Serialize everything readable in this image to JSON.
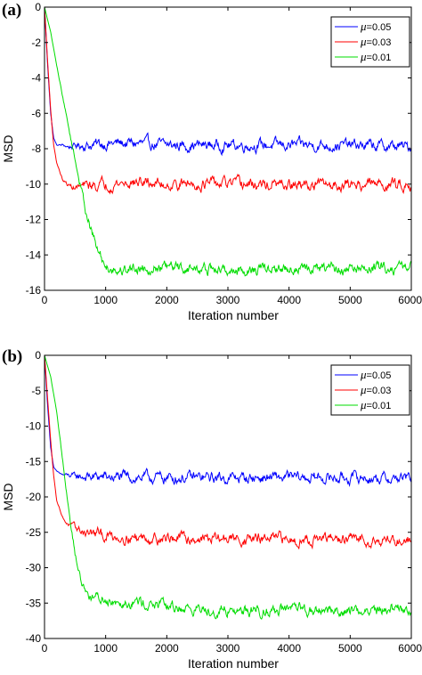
{
  "chart_data": [
    {
      "panel_label": "(a)",
      "type": "line",
      "xlabel": "Iteration number",
      "ylabel": "MSD",
      "xlim": [
        0,
        6000
      ],
      "ylim": [
        -16,
        0
      ],
      "xticks": [
        0,
        1000,
        2000,
        3000,
        4000,
        5000,
        6000
      ],
      "yticks": [
        0,
        -2,
        -4,
        -6,
        -8,
        -10,
        -12,
        -14,
        -16
      ],
      "legend_position": "top-right",
      "series": [
        {
          "name": "μ=0.05",
          "mu_symbol": "μ",
          "mu_value": "=0.05",
          "color": "#0000ff",
          "x": [
            0,
            50,
            100,
            150,
            200,
            300,
            400,
            600,
            800,
            1000,
            1500,
            2000,
            3000,
            4000,
            5000,
            6000
          ],
          "y": [
            0,
            -3.2,
            -6.0,
            -7.4,
            -7.8,
            -7.8,
            -7.9,
            -7.8,
            -7.8,
            -7.7,
            -7.7,
            -7.8,
            -7.8,
            -7.8,
            -7.8,
            -7.9
          ]
        },
        {
          "name": "μ=0.03",
          "mu_symbol": "μ",
          "mu_value": "=0.03",
          "color": "#ff0000",
          "x": [
            0,
            50,
            100,
            150,
            200,
            300,
            400,
            500,
            700,
            1000,
            1500,
            2000,
            3000,
            4000,
            5000,
            6000
          ],
          "y": [
            0,
            -3.0,
            -5.8,
            -7.8,
            -8.8,
            -9.8,
            -10.1,
            -10.2,
            -10.1,
            -10.0,
            -9.9,
            -10.0,
            -10.0,
            -10.1,
            -10.0,
            -10.0
          ]
        },
        {
          "name": "μ=0.01",
          "mu_symbol": "μ",
          "mu_value": "=0.01",
          "color": "#00dd00",
          "x": [
            0,
            100,
            200,
            300,
            400,
            500,
            600,
            700,
            800,
            900,
            1000,
            1200,
            1500,
            2000,
            3000,
            4000,
            5000,
            6000
          ],
          "y": [
            0,
            -1.4,
            -3.3,
            -5.1,
            -6.9,
            -8.6,
            -10.3,
            -11.8,
            -13.1,
            -14.0,
            -14.6,
            -14.9,
            -14.7,
            -14.7,
            -14.9,
            -14.8,
            -14.8,
            -14.7
          ]
        }
      ]
    },
    {
      "panel_label": "(b)",
      "type": "line",
      "xlabel": "Iteration number",
      "ylabel": "MSD",
      "xlim": [
        0,
        6000
      ],
      "ylim": [
        -40,
        0
      ],
      "xticks": [
        0,
        1000,
        2000,
        3000,
        4000,
        5000,
        6000
      ],
      "yticks": [
        0,
        -5,
        -10,
        -15,
        -20,
        -25,
        -30,
        -35,
        -40
      ],
      "legend_position": "top-right",
      "series": [
        {
          "name": "μ=0.05",
          "mu_symbol": "μ",
          "mu_value": "=0.05",
          "color": "#0000ff",
          "x": [
            0,
            50,
            100,
            150,
            200,
            300,
            500,
            800,
            1000,
            2000,
            3000,
            4000,
            5000,
            6000
          ],
          "y": [
            0,
            -7.0,
            -13.0,
            -15.8,
            -16.4,
            -16.9,
            -17.1,
            -17.2,
            -17.2,
            -17.3,
            -17.3,
            -17.3,
            -17.3,
            -17.4
          ]
        },
        {
          "name": "μ=0.03",
          "mu_symbol": "μ",
          "mu_value": "=0.03",
          "color": "#ff0000",
          "x": [
            0,
            50,
            100,
            150,
            200,
            300,
            400,
            600,
            800,
            1000,
            1500,
            2000,
            3000,
            4000,
            5000,
            6000
          ],
          "y": [
            0,
            -6.0,
            -12.0,
            -17.0,
            -20.5,
            -23.0,
            -24.0,
            -24.8,
            -25.2,
            -25.5,
            -25.7,
            -25.8,
            -25.9,
            -26.0,
            -26.0,
            -26.1
          ]
        },
        {
          "name": "μ=0.01",
          "mu_symbol": "μ",
          "mu_value": "=0.01",
          "color": "#00dd00",
          "x": [
            0,
            100,
            200,
            300,
            400,
            500,
            600,
            700,
            800,
            1000,
            1500,
            2000,
            2500,
            3000,
            4000,
            5000,
            6000
          ],
          "y": [
            0,
            -3.0,
            -8.0,
            -15.0,
            -22.0,
            -28.0,
            -32.0,
            -33.6,
            -34.2,
            -34.5,
            -34.8,
            -35.5,
            -35.9,
            -36.0,
            -36.0,
            -36.1,
            -35.9
          ]
        }
      ]
    }
  ]
}
